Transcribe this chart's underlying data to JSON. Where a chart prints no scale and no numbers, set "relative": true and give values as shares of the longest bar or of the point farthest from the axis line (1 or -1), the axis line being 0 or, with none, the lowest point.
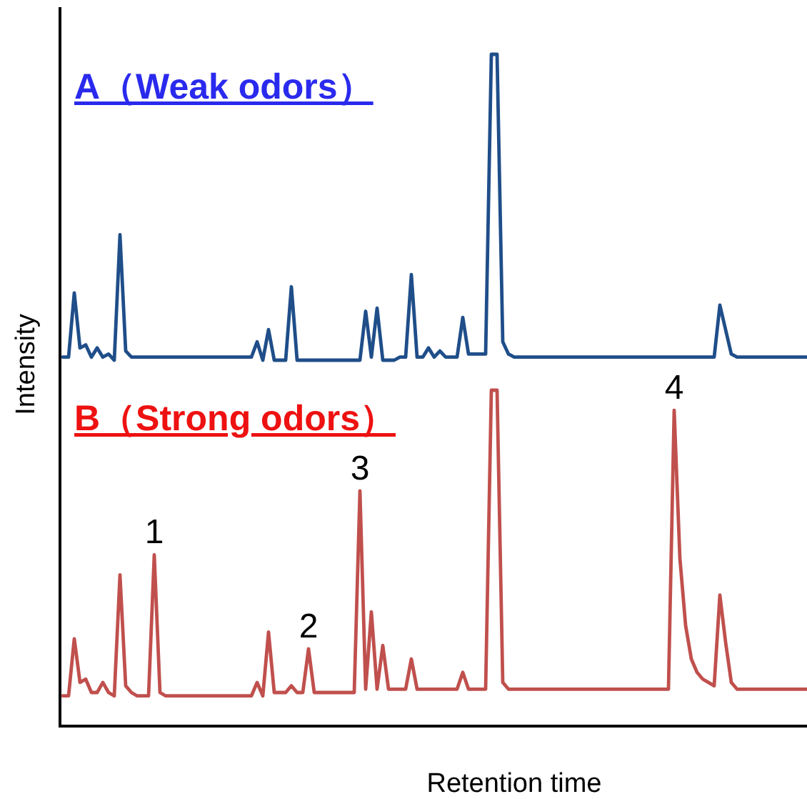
{
  "chart_data": [
    {
      "type": "line",
      "relative": true,
      "title": "A（Weak odors）",
      "categories": [
        null,
        null,
        null,
        null,
        null,
        null,
        null,
        null,
        null,
        null,
        null,
        null,
        null,
        null,
        null,
        null,
        null,
        null,
        null,
        null,
        null,
        null,
        null,
        null,
        null,
        null,
        null,
        null,
        null,
        null,
        null,
        null,
        null,
        null,
        null,
        null,
        null,
        null,
        null,
        null,
        null,
        null,
        null,
        null,
        null,
        null,
        null,
        null,
        null,
        null,
        null,
        null,
        null,
        null,
        null,
        null,
        null,
        null,
        null,
        null,
        null,
        null,
        null,
        null,
        null,
        null,
        null,
        null,
        null,
        null,
        null,
        null,
        null,
        null,
        null,
        null,
        null,
        null,
        null,
        null,
        null,
        null,
        null,
        null,
        null,
        null,
        null,
        null,
        null,
        null,
        null,
        null,
        null,
        null,
        null,
        null,
        null,
        null,
        null,
        null,
        null,
        null,
        null,
        null,
        null,
        null,
        null,
        null,
        null,
        null,
        null,
        null,
        null,
        null,
        null,
        null,
        null,
        null,
        null,
        null,
        null,
        null,
        null,
        null,
        null,
        null,
        null,
        null,
        null,
        null,
        null,
        null
      ],
      "series": [
        {
          "color": "#1f4e89",
          "values": [
            0.01,
            0.01,
            0.22,
            0.04,
            0.05,
            0.01,
            0.04,
            0.01,
            0.02,
            0,
            0.41,
            0.03,
            0.01,
            0.01,
            0.01,
            0.01,
            0.01,
            0.01,
            0.01,
            0.01,
            0.01,
            0.01,
            0.01,
            0.01,
            0.01,
            0.01,
            0.01,
            0.01,
            0.01,
            0.01,
            0.01,
            0.01,
            0.01,
            0.01,
            0.06,
            0,
            0.1,
            0,
            0,
            0,
            0.24,
            0,
            0,
            0,
            0,
            0,
            0,
            0,
            0,
            0,
            0,
            0,
            0,
            0.16,
            0.01,
            0.17,
            0,
            0,
            0,
            0.01,
            0.01,
            0.28,
            0.01,
            0.01,
            0.04,
            0.01,
            0.03,
            0.01,
            0.01,
            0.01,
            0.14,
            0.02,
            0.02,
            0.02,
            0.02,
            1,
            1,
            0.06,
            0.02,
            0.01,
            0.01,
            0.01,
            0.01,
            0.01,
            0.01,
            0.01,
            0.01,
            0.01,
            0.01,
            0.01,
            0.01,
            0.01,
            0.01,
            0.01,
            0.01,
            0.01,
            0.01,
            0.01,
            0.01,
            0.01,
            0.01,
            0.01,
            0.01,
            0.01,
            0.01,
            0.01,
            0.01,
            0.01,
            0.01,
            0.01,
            0.01,
            0.01,
            0.01,
            0.01,
            0.01,
            0.18,
            0.1,
            0.02,
            0.01,
            0.01,
            0.01,
            0.01,
            0.01,
            0.01,
            0.01,
            0.01,
            0.01,
            0.01,
            0.01,
            0.01,
            0.01,
            0.01
          ]
        }
      ]
    },
    {
      "type": "line",
      "relative": true,
      "title": "B（Strong odors）",
      "xlabel": "Retention time",
      "ylabel": "Intensity",
      "categories": [
        null,
        null,
        null,
        null,
        null,
        null,
        null,
        null,
        null,
        null,
        null,
        null,
        null,
        null,
        null,
        null,
        null,
        null,
        null,
        null,
        null,
        null,
        null,
        null,
        null,
        null,
        null,
        null,
        null,
        null,
        null,
        null,
        null,
        null,
        null,
        null,
        null,
        null,
        null,
        null,
        null,
        null,
        null,
        null,
        null,
        null,
        null,
        null,
        null,
        null,
        null,
        null,
        null,
        null,
        null,
        null,
        null,
        null,
        null,
        null,
        null,
        null,
        null,
        null,
        null,
        null,
        null,
        null,
        null,
        null,
        null,
        null,
        null,
        null,
        null,
        null,
        null,
        null,
        null,
        null,
        null,
        null,
        null,
        null,
        null,
        null,
        null,
        null,
        null,
        null,
        null,
        null,
        null,
        null,
        null,
        null,
        null,
        null,
        null,
        null,
        null,
        null,
        null,
        null,
        null,
        null,
        null,
        null,
        null,
        null,
        null,
        null,
        null,
        null,
        null,
        null,
        null,
        null,
        null,
        null,
        null,
        null,
        null,
        null,
        null,
        null,
        null,
        null,
        null,
        null,
        null,
        null
      ],
      "series": [
        {
          "color": "#c0504d",
          "values": [
            0.09,
            0.09,
            0.26,
            0.13,
            0.14,
            0.1,
            0.1,
            0.13,
            0.1,
            0.09,
            0.45,
            0.12,
            0.1,
            0.09,
            0.09,
            0.09,
            0.51,
            0.1,
            0.09,
            0.09,
            0.09,
            0.09,
            0.09,
            0.09,
            0.09,
            0.09,
            0.09,
            0.09,
            0.09,
            0.09,
            0.09,
            0.09,
            0.09,
            0.09,
            0.13,
            0.09,
            0.28,
            0.1,
            0.1,
            0.1,
            0.12,
            0.1,
            0.1,
            0.23,
            0.1,
            0.1,
            0.1,
            0.1,
            0.1,
            0.1,
            0.1,
            0.1,
            0.7,
            0.11,
            0.34,
            0.11,
            0.24,
            0.11,
            0.11,
            0.11,
            0.11,
            0.2,
            0.11,
            0.11,
            0.11,
            0.11,
            0.11,
            0.11,
            0.11,
            0.11,
            0.16,
            0.11,
            0.11,
            0.11,
            0.11,
            1,
            1,
            0.13,
            0.11,
            0.11,
            0.11,
            0.11,
            0.11,
            0.11,
            0.11,
            0.11,
            0.11,
            0.11,
            0.11,
            0.11,
            0.11,
            0.11,
            0.11,
            0.11,
            0.11,
            0.11,
            0.11,
            0.11,
            0.11,
            0.11,
            0.11,
            0.11,
            0.11,
            0.11,
            0.11,
            0.11,
            0.11,
            0.94,
            0.5,
            0.3,
            0.2,
            0.16,
            0.14,
            0.13,
            0.12,
            0.39,
            0.25,
            0.13,
            0.11,
            0.11,
            0.11,
            0.11,
            0.11,
            0.11,
            0.11,
            0.11,
            0.11,
            0.11,
            0.11,
            0.11,
            0.11,
            0.11
          ]
        }
      ],
      "annotations": [
        {
          "text": "1",
          "y": 0.51
        },
        {
          "text": "2",
          "y": 0.23
        },
        {
          "text": "3",
          "y": 0.7
        },
        {
          "text": "4",
          "y": 0.94
        }
      ]
    }
  ]
}
